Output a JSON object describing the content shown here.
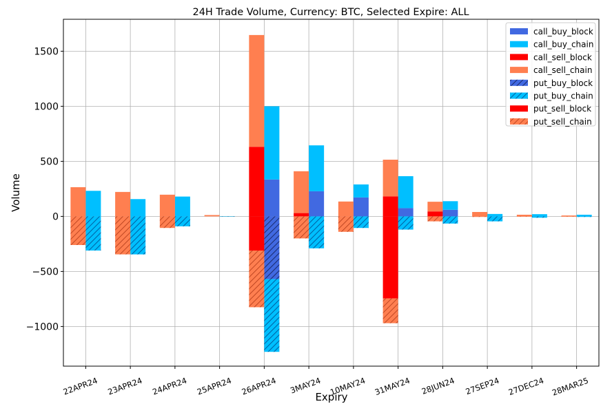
{
  "chart_data": {
    "type": "bar",
    "title": "24H Trade Volume, Currency: BTC, Selected Expire: ALL",
    "xlabel": "Expiry",
    "ylabel": "Volume",
    "ylim": [
      -1360,
      1790
    ],
    "yticks": [
      -1000,
      -500,
      0,
      500,
      1000,
      1500
    ],
    "ytick_labels": [
      "−1000",
      "−500",
      "0",
      "500",
      "1000",
      "1500"
    ],
    "grid": true,
    "legend_position": "top-right",
    "categories": [
      "22APR24",
      "23APR24",
      "24APR24",
      "25APR24",
      "26APR24",
      "3MAY24",
      "10MAY24",
      "31MAY24",
      "28JUN24",
      "27SEP24",
      "27DEC24",
      "28MAR25"
    ],
    "colors": {
      "call_buy_block": "#4169e1",
      "call_buy_chain": "#00bfff",
      "call_sell_block": "#ff0000",
      "call_sell_chain": "#ff7f50",
      "put_buy_block": "#4169e1",
      "put_buy_chain": "#00bfff",
      "put_sell_block": "#ff0000",
      "put_sell_chain": "#ff7f50",
      "grid": "#b0b0b0"
    },
    "series": [
      {
        "name": "call_buy_block",
        "group": "buy",
        "hatch": false,
        "values": [
          0,
          0,
          0,
          0,
          335,
          228,
          172,
          75,
          60,
          0,
          0,
          0
        ]
      },
      {
        "name": "call_buy_chain",
        "group": "buy",
        "hatch": false,
        "values": [
          232,
          157,
          180,
          0,
          665,
          417,
          118,
          290,
          78,
          22,
          20,
          15
        ]
      },
      {
        "name": "call_sell_block",
        "group": "sell",
        "hatch": false,
        "values": [
          0,
          0,
          0,
          0,
          632,
          30,
          0,
          182,
          45,
          0,
          0,
          0
        ]
      },
      {
        "name": "call_sell_chain",
        "group": "sell",
        "hatch": false,
        "values": [
          265,
          222,
          197,
          12,
          1015,
          380,
          135,
          333,
          88,
          40,
          15,
          8
        ]
      },
      {
        "name": "put_buy_block",
        "group": "buy",
        "hatch": true,
        "values": [
          0,
          0,
          0,
          0,
          -570,
          0,
          0,
          0,
          0,
          0,
          0,
          0
        ]
      },
      {
        "name": "put_buy_chain",
        "group": "buy",
        "hatch": true,
        "values": [
          -310,
          -345,
          -90,
          -3,
          -660,
          -290,
          -105,
          -120,
          -65,
          -45,
          -12,
          -5
        ]
      },
      {
        "name": "put_sell_block",
        "group": "sell",
        "hatch": false,
        "values": [
          0,
          0,
          0,
          0,
          -310,
          0,
          0,
          -745,
          0,
          0,
          0,
          0
        ]
      },
      {
        "name": "put_sell_chain",
        "group": "sell",
        "hatch": true,
        "values": [
          -260,
          -345,
          -105,
          0,
          -515,
          -200,
          -140,
          -225,
          -45,
          -5,
          -3,
          -3
        ]
      }
    ]
  }
}
